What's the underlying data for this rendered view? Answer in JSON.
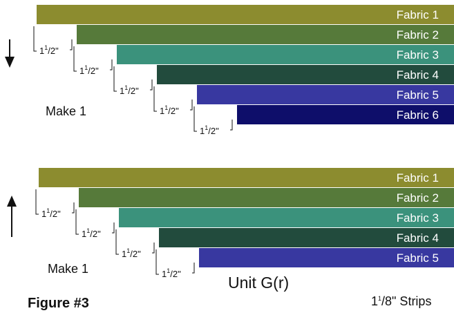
{
  "panels": [
    {
      "id": "top",
      "arrow": "down",
      "note": "Make 1",
      "strips": [
        {
          "label": "Fabric 1",
          "color": "#8c8c2f"
        },
        {
          "label": "Fabric 2",
          "color": "#567a3a"
        },
        {
          "label": "Fabric 3",
          "color": "#3b927c"
        },
        {
          "label": "Fabric 4",
          "color": "#224b3d"
        },
        {
          "label": "Fabric 5",
          "color": "#3838a0"
        },
        {
          "label": "Fabric 6",
          "color": "#0e0e6a"
        }
      ],
      "offsets": [
        "1",
        "1",
        "1",
        "1",
        "1"
      ]
    },
    {
      "id": "bottom",
      "arrow": "up",
      "note": "Make 1",
      "strips": [
        {
          "label": "Fabric 1",
          "color": "#8c8c2f"
        },
        {
          "label": "Fabric 2",
          "color": "#567a3a"
        },
        {
          "label": "Fabric 3",
          "color": "#3b927c"
        },
        {
          "label": "Fabric 4",
          "color": "#224b3d"
        },
        {
          "label": "Fabric 5",
          "color": "#3838a0"
        }
      ],
      "offsets": [
        "1",
        "1",
        "1",
        "1"
      ]
    }
  ],
  "dimension": {
    "whole": "1",
    "fraction": "1/2\""
  },
  "unit_label": "Unit G(r)",
  "figure_label": "Figure #3",
  "strip_width": {
    "whole": "1",
    "sup": "1",
    "rest": "/8\" Strips"
  }
}
